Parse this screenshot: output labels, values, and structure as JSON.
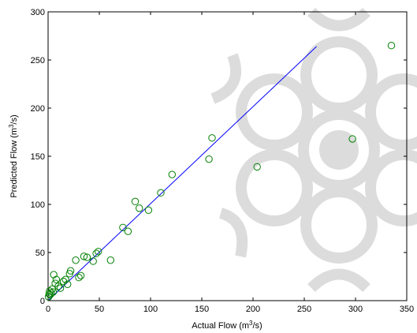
{
  "chart_data": {
    "type": "scatter",
    "xlabel": {
      "prefix": "Actual Flow (m",
      "sup": "3",
      "suffix": "/s)"
    },
    "ylabel": {
      "prefix": "Predicted Flow (m",
      "sup": "3",
      "suffix": "/s)"
    },
    "xlim": [
      0,
      350
    ],
    "ylim": [
      0,
      300
    ],
    "xticks": [
      0,
      50,
      100,
      150,
      200,
      250,
      300,
      350
    ],
    "yticks": [
      0,
      50,
      100,
      150,
      200,
      250,
      300
    ],
    "grid": false,
    "watermark": "grey ornamental rosette watermark",
    "colors": {
      "points": "#008000",
      "fit_line": "#0000ff",
      "watermark": "#dcdcdc"
    },
    "series": [
      {
        "marker": "circle",
        "x": [
          0.5,
          1,
          1.5,
          2,
          3,
          4,
          5,
          5.5,
          7,
          8,
          10,
          12,
          15,
          17,
          19,
          21,
          22,
          27,
          30,
          32,
          35,
          38,
          44,
          47,
          49,
          61,
          73,
          78,
          85,
          89,
          98,
          110,
          121,
          157,
          160,
          204,
          297,
          335
        ],
        "y": [
          4,
          7,
          10,
          6,
          8,
          12,
          9,
          27,
          18,
          22,
          15,
          13,
          20,
          22,
          17,
          28,
          31,
          42,
          24,
          26,
          46,
          45,
          41,
          49,
          51,
          42,
          76,
          72,
          103,
          96,
          94,
          112,
          131,
          147,
          169,
          139,
          168,
          265
        ]
      },
      {
        "marker": "line",
        "x": [
          0,
          262
        ],
        "y": [
          0,
          264
        ]
      }
    ]
  }
}
